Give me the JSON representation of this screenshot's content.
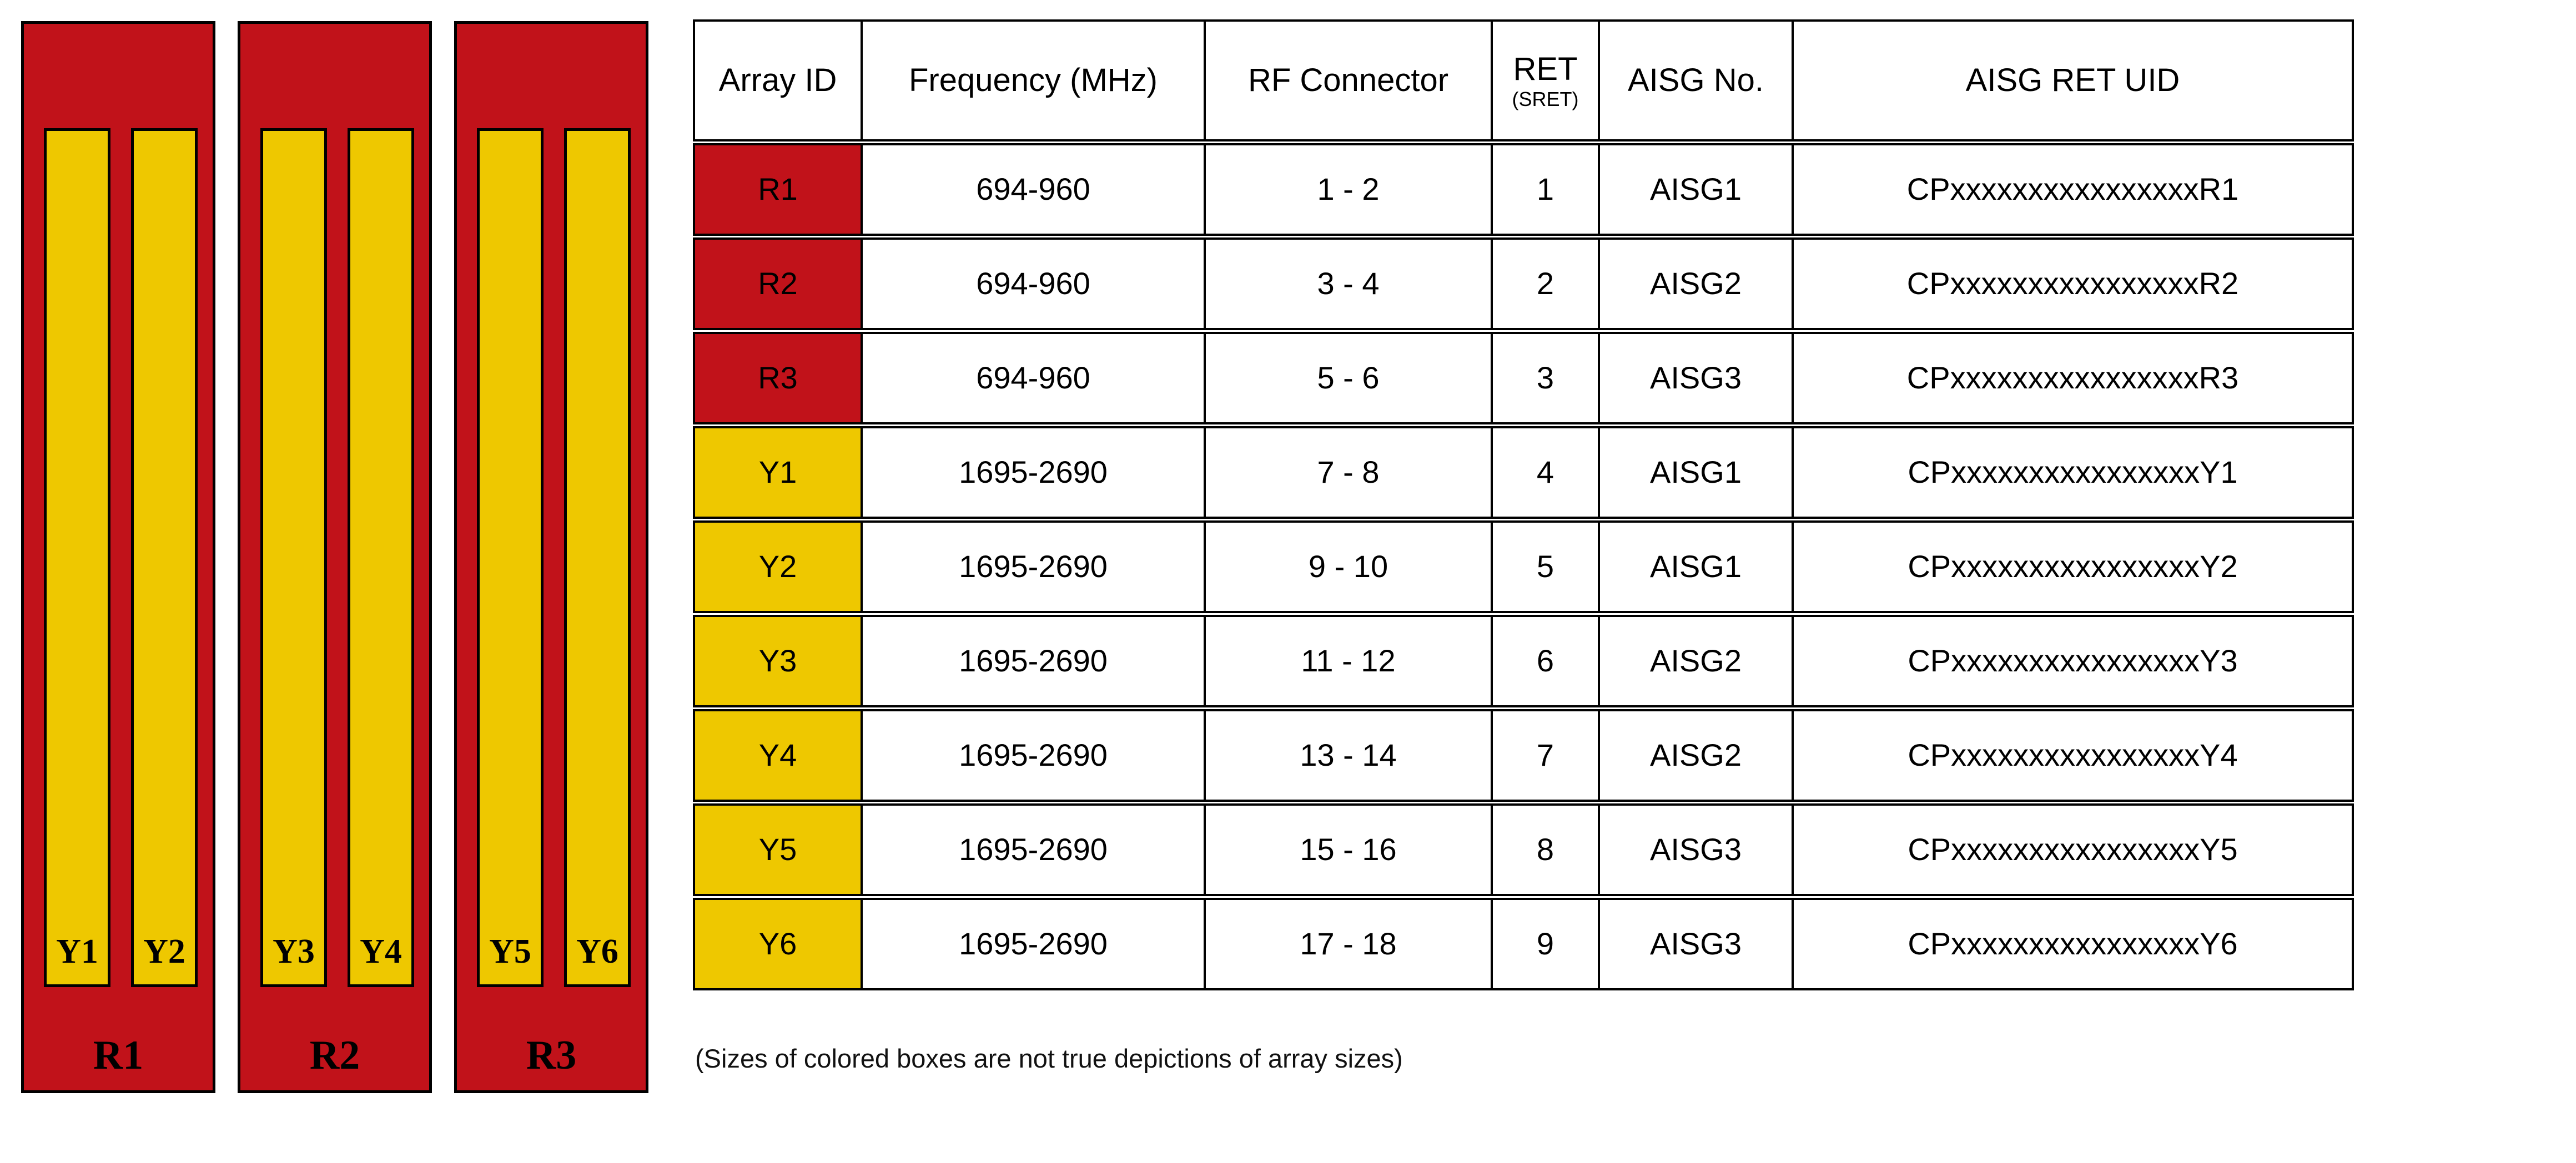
{
  "colors": {
    "red": "#C1121A",
    "yellow": "#EEC800",
    "border": "#000000"
  },
  "diagram": {
    "panels": [
      {
        "label": "R1",
        "bars": [
          {
            "label": "Y1"
          },
          {
            "label": "Y2"
          }
        ]
      },
      {
        "label": "R2",
        "bars": [
          {
            "label": "Y3"
          },
          {
            "label": "Y4"
          }
        ]
      },
      {
        "label": "R3",
        "bars": [
          {
            "label": "Y5"
          },
          {
            "label": "Y6"
          }
        ]
      }
    ]
  },
  "table": {
    "headers": {
      "array_id": "Array ID",
      "frequency": "Frequency (MHz)",
      "rf_connector": "RF Connector",
      "ret": "RET",
      "ret_sub": "(SRET)",
      "aisg_no": "AISG No.",
      "aisg_ret_uid": "AISG RET UID"
    },
    "rows": [
      {
        "array_id": "R1",
        "color": "red",
        "frequency": "694-960",
        "rf_connector": "1 - 2",
        "ret": "1",
        "aisg_no": "AISG1",
        "aisg_ret_uid": "CPxxxxxxxxxxxxxxxxR1"
      },
      {
        "array_id": "R2",
        "color": "red",
        "frequency": "694-960",
        "rf_connector": "3 - 4",
        "ret": "2",
        "aisg_no": "AISG2",
        "aisg_ret_uid": "CPxxxxxxxxxxxxxxxxR2"
      },
      {
        "array_id": "R3",
        "color": "red",
        "frequency": "694-960",
        "rf_connector": "5 - 6",
        "ret": "3",
        "aisg_no": "AISG3",
        "aisg_ret_uid": "CPxxxxxxxxxxxxxxxxR3"
      },
      {
        "array_id": "Y1",
        "color": "yellow",
        "frequency": "1695-2690",
        "rf_connector": "7 - 8",
        "ret": "4",
        "aisg_no": "AISG1",
        "aisg_ret_uid": "CPxxxxxxxxxxxxxxxxY1"
      },
      {
        "array_id": "Y2",
        "color": "yellow",
        "frequency": "1695-2690",
        "rf_connector": "9 - 10",
        "ret": "5",
        "aisg_no": "AISG1",
        "aisg_ret_uid": "CPxxxxxxxxxxxxxxxxY2"
      },
      {
        "array_id": "Y3",
        "color": "yellow",
        "frequency": "1695-2690",
        "rf_connector": "11 - 12",
        "ret": "6",
        "aisg_no": "AISG2",
        "aisg_ret_uid": "CPxxxxxxxxxxxxxxxxY3"
      },
      {
        "array_id": "Y4",
        "color": "yellow",
        "frequency": "1695-2690",
        "rf_connector": "13 - 14",
        "ret": "7",
        "aisg_no": "AISG2",
        "aisg_ret_uid": "CPxxxxxxxxxxxxxxxxY4"
      },
      {
        "array_id": "Y5",
        "color": "yellow",
        "frequency": "1695-2690",
        "rf_connector": "15 - 16",
        "ret": "8",
        "aisg_no": "AISG3",
        "aisg_ret_uid": "CPxxxxxxxxxxxxxxxxY5"
      },
      {
        "array_id": "Y6",
        "color": "yellow",
        "frequency": "1695-2690",
        "rf_connector": "17 - 18",
        "ret": "9",
        "aisg_no": "AISG3",
        "aisg_ret_uid": "CPxxxxxxxxxxxxxxxxY6"
      }
    ]
  },
  "caption": "(Sizes of colored boxes are not true depictions of array sizes)"
}
